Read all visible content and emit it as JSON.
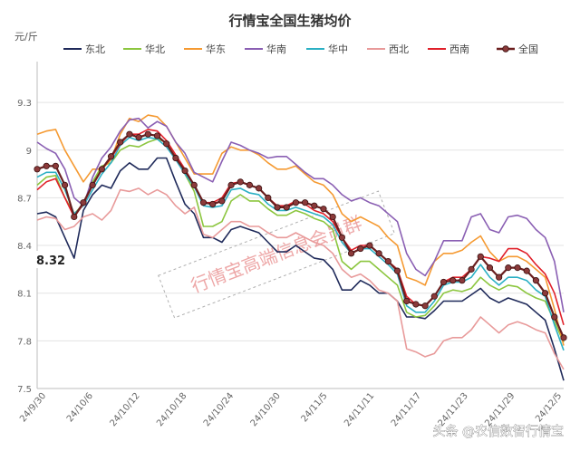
{
  "chart_data": {
    "type": "line",
    "title": "行情宝全国生猪均价",
    "ylabel": "元/斤",
    "ylim": [
      7.5,
      9.5
    ],
    "yticks": [
      7.5,
      7.8,
      8.1,
      8.4,
      8.7,
      9,
      9.3
    ],
    "x_tick_labels": [
      "24/9/30",
      "24/10/6",
      "24/10/12",
      "24/10/18",
      "24/10/24",
      "24/10/30",
      "24/11/5",
      "24/11/11",
      "24/11/17",
      "24/11/23",
      "24/11/29",
      "24/12/5"
    ],
    "grid": "horizontal",
    "legend_position": "top",
    "callout": "8.32",
    "watermark": "行情宝高端信息会员群",
    "credit": "头条 @农信数智行情宝",
    "series": [
      {
        "name": "东北",
        "color": "#1f2a5a",
        "marker": false,
        "values": [
          8.6,
          8.61,
          8.58,
          8.45,
          8.32,
          8.62,
          8.72,
          8.78,
          8.76,
          8.87,
          8.92,
          8.88,
          8.88,
          8.95,
          8.95,
          8.8,
          8.66,
          8.6,
          8.45,
          8.45,
          8.42,
          8.5,
          8.52,
          8.5,
          8.48,
          8.42,
          8.36,
          8.36,
          8.4,
          8.36,
          8.32,
          8.31,
          8.25,
          8.12,
          8.12,
          8.18,
          8.15,
          8.1,
          8.1,
          8.05,
          7.95,
          7.95,
          7.94,
          7.99,
          8.05,
          8.05,
          8.05,
          8.09,
          8.13,
          8.07,
          8.04,
          8.07,
          8.05,
          8.03,
          7.98,
          7.93,
          7.75,
          7.55
        ]
      },
      {
        "name": "华北",
        "color": "#8cc63f",
        "marker": false,
        "values": [
          8.78,
          8.83,
          8.84,
          8.7,
          8.6,
          8.66,
          8.8,
          8.9,
          8.92,
          9.0,
          9.03,
          9.02,
          9.05,
          9.07,
          9.05,
          8.95,
          8.85,
          8.74,
          8.52,
          8.52,
          8.55,
          8.68,
          8.72,
          8.68,
          8.68,
          8.63,
          8.59,
          8.59,
          8.62,
          8.6,
          8.57,
          8.55,
          8.5,
          8.3,
          8.25,
          8.3,
          8.3,
          8.25,
          8.2,
          8.15,
          7.98,
          7.95,
          7.96,
          8.02,
          8.1,
          8.12,
          8.11,
          8.13,
          8.2,
          8.15,
          8.12,
          8.15,
          8.14,
          8.1,
          8.07,
          8.05,
          7.92,
          7.79
        ]
      },
      {
        "name": "华东",
        "color": "#f59a32",
        "marker": false,
        "values": [
          9.1,
          9.12,
          9.13,
          9.0,
          8.9,
          8.8,
          8.88,
          8.88,
          8.94,
          9.1,
          9.2,
          9.18,
          9.22,
          9.21,
          9.15,
          9.05,
          8.95,
          8.85,
          8.85,
          8.85,
          8.98,
          9.02,
          9.0,
          9.0,
          8.97,
          8.92,
          8.88,
          8.88,
          8.9,
          8.85,
          8.8,
          8.78,
          8.72,
          8.6,
          8.55,
          8.58,
          8.55,
          8.52,
          8.45,
          8.4,
          8.2,
          8.18,
          8.15,
          8.3,
          8.35,
          8.35,
          8.37,
          8.42,
          8.46,
          8.36,
          8.3,
          8.33,
          8.33,
          8.3,
          8.25,
          8.2,
          8.0,
          7.77
        ]
      },
      {
        "name": "华南",
        "color": "#8a5fb3",
        "marker": false,
        "values": [
          9.05,
          9.01,
          8.98,
          8.88,
          8.7,
          8.65,
          8.83,
          8.95,
          9.02,
          9.12,
          9.19,
          9.2,
          9.14,
          9.18,
          9.15,
          9.05,
          8.98,
          8.86,
          8.83,
          8.8,
          8.93,
          9.05,
          9.03,
          9.0,
          8.98,
          8.95,
          8.96,
          8.96,
          8.91,
          8.86,
          8.82,
          8.82,
          8.78,
          8.72,
          8.68,
          8.7,
          8.67,
          8.65,
          8.6,
          8.55,
          8.35,
          8.25,
          8.21,
          8.3,
          8.43,
          8.43,
          8.43,
          8.58,
          8.6,
          8.5,
          8.48,
          8.58,
          8.59,
          8.57,
          8.5,
          8.45,
          8.3,
          7.98
        ]
      },
      {
        "name": "华中",
        "color": "#2bb0c4",
        "marker": false,
        "values": [
          8.83,
          8.86,
          8.86,
          8.75,
          8.6,
          8.65,
          8.75,
          8.85,
          8.92,
          9.03,
          9.08,
          9.06,
          9.08,
          9.07,
          9.02,
          8.94,
          8.85,
          8.77,
          8.65,
          8.64,
          8.65,
          8.75,
          8.76,
          8.73,
          8.72,
          8.66,
          8.62,
          8.62,
          8.64,
          8.62,
          8.6,
          8.58,
          8.53,
          8.42,
          8.35,
          8.38,
          8.38,
          8.33,
          8.28,
          8.22,
          8.02,
          7.98,
          7.98,
          8.05,
          8.15,
          8.17,
          8.17,
          8.2,
          8.28,
          8.2,
          8.15,
          8.2,
          8.2,
          8.18,
          8.12,
          8.08,
          7.9,
          7.74
        ]
      },
      {
        "name": "西北",
        "color": "#e89a9a",
        "marker": false,
        "values": [
          8.56,
          8.58,
          8.57,
          8.5,
          8.52,
          8.58,
          8.6,
          8.56,
          8.62,
          8.75,
          8.74,
          8.76,
          8.72,
          8.75,
          8.72,
          8.65,
          8.6,
          8.64,
          8.47,
          8.45,
          8.5,
          8.55,
          8.55,
          8.52,
          8.52,
          8.48,
          8.45,
          8.45,
          8.48,
          8.45,
          8.42,
          8.4,
          8.35,
          8.25,
          8.2,
          8.22,
          8.18,
          8.12,
          8.1,
          8.05,
          7.75,
          7.73,
          7.7,
          7.72,
          7.8,
          7.82,
          7.82,
          7.87,
          7.95,
          7.9,
          7.85,
          7.9,
          7.92,
          7.9,
          7.87,
          7.85,
          7.72,
          7.62
        ]
      },
      {
        "name": "西南",
        "color": "#e0202a",
        "marker": false,
        "values": [
          8.75,
          8.8,
          8.82,
          8.7,
          8.58,
          8.66,
          8.78,
          8.88,
          8.95,
          9.04,
          9.1,
          9.1,
          9.13,
          9.12,
          9.06,
          8.97,
          8.88,
          8.78,
          8.67,
          8.67,
          8.7,
          8.79,
          8.8,
          8.78,
          8.76,
          8.7,
          8.65,
          8.65,
          8.68,
          8.66,
          8.62,
          8.6,
          8.55,
          8.45,
          8.37,
          8.4,
          8.4,
          8.35,
          8.3,
          8.25,
          8.08,
          8.03,
          8.02,
          8.08,
          8.17,
          8.2,
          8.2,
          8.25,
          8.33,
          8.32,
          8.3,
          8.38,
          8.38,
          8.35,
          8.28,
          8.22,
          8.1,
          7.9
        ]
      },
      {
        "name": "全国",
        "color": "#6b1f1f",
        "marker": true,
        "values": [
          8.88,
          8.9,
          8.9,
          8.78,
          8.58,
          8.67,
          8.78,
          8.88,
          8.96,
          9.05,
          9.1,
          9.08,
          9.1,
          9.09,
          9.04,
          8.95,
          8.87,
          8.78,
          8.67,
          8.66,
          8.68,
          8.78,
          8.8,
          8.78,
          8.76,
          8.7,
          8.64,
          8.64,
          8.67,
          8.67,
          8.65,
          8.63,
          8.58,
          8.45,
          8.35,
          8.38,
          8.4,
          8.35,
          8.3,
          8.24,
          8.05,
          8.03,
          8.02,
          8.08,
          8.17,
          8.18,
          8.18,
          8.25,
          8.33,
          8.26,
          8.2,
          8.26,
          8.26,
          8.24,
          8.18,
          8.1,
          7.95,
          7.82
        ]
      }
    ]
  }
}
